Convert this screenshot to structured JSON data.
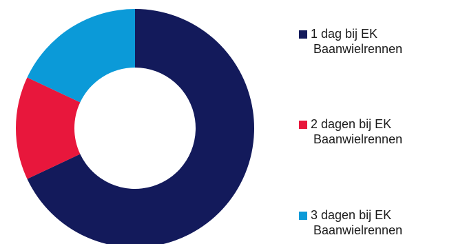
{
  "chart_data": {
    "type": "pie",
    "donut": true,
    "legend_position": "right",
    "slices": [
      {
        "label": "1 dag bij EK Baanwielrennen",
        "label_line1": "1 dag bij EK",
        "label_line2": "Baanwielrennen",
        "value": 68,
        "color": "#131a5b"
      },
      {
        "label": "2 dagen bij EK Baanwielrennen",
        "label_line1": "2 dagen bij EK",
        "label_line2": "Baanwielrennen",
        "value": 14,
        "color": "#e8173c"
      },
      {
        "label": "3 dagen bij EK Baanwielrennen",
        "label_line1": "3 dagen bij EK",
        "label_line2": "Baanwielrennen",
        "value": 18,
        "color": "#0b9ad8"
      }
    ]
  }
}
